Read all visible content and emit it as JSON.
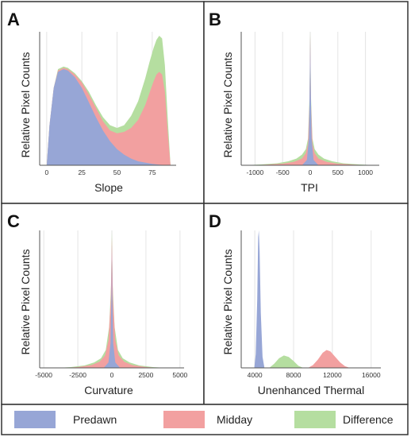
{
  "colors": {
    "predawn": "#97a6d6",
    "midday": "#f2a0a0",
    "difference": "#b5dea0",
    "border": "#333333"
  },
  "legend": {
    "items": [
      {
        "key": "predawn",
        "label": "Predawn",
        "color": "#97a6d6"
      },
      {
        "key": "midday",
        "label": "Midday",
        "color": "#f2a0a0"
      },
      {
        "key": "difference",
        "label": "Difference",
        "color": "#b5dea0"
      }
    ]
  },
  "chart_data": [
    {
      "panel": "A",
      "type": "area",
      "xlabel": "Slope",
      "ylabel": "Relative Pixel Counts",
      "xlim": [
        -5,
        92
      ],
      "ylim": [
        0,
        1
      ],
      "xticks": [
        0,
        25,
        50,
        75
      ],
      "tick_labels": [
        "0",
        "25",
        "50",
        "75"
      ],
      "series": [
        {
          "key": "difference",
          "x": [
            0,
            2,
            5,
            8,
            12,
            15,
            20,
            25,
            30,
            35,
            40,
            45,
            50,
            55,
            60,
            65,
            70,
            73,
            76,
            78,
            80,
            82,
            84,
            86,
            88
          ],
          "values": [
            0,
            0.3,
            0.58,
            0.72,
            0.74,
            0.73,
            0.69,
            0.63,
            0.55,
            0.45,
            0.36,
            0.3,
            0.28,
            0.3,
            0.37,
            0.48,
            0.65,
            0.77,
            0.88,
            0.94,
            0.97,
            0.95,
            0.75,
            0.35,
            0
          ]
        },
        {
          "key": "midday",
          "x": [
            0,
            2,
            5,
            8,
            12,
            15,
            20,
            25,
            30,
            35,
            40,
            45,
            50,
            55,
            60,
            65,
            70,
            73,
            76,
            78,
            80,
            82,
            84,
            86,
            88
          ],
          "values": [
            0,
            0.3,
            0.58,
            0.71,
            0.73,
            0.72,
            0.68,
            0.62,
            0.53,
            0.43,
            0.33,
            0.26,
            0.24,
            0.25,
            0.28,
            0.34,
            0.45,
            0.54,
            0.63,
            0.68,
            0.7,
            0.68,
            0.55,
            0.25,
            0
          ]
        },
        {
          "key": "predawn",
          "x": [
            0,
            2,
            5,
            8,
            12,
            15,
            20,
            25,
            30,
            35,
            40,
            45,
            50,
            55,
            60,
            65,
            70,
            75,
            80,
            85,
            88
          ],
          "values": [
            0,
            0.3,
            0.58,
            0.7,
            0.72,
            0.71,
            0.66,
            0.58,
            0.47,
            0.36,
            0.26,
            0.18,
            0.12,
            0.08,
            0.05,
            0.03,
            0.02,
            0.01,
            0.005,
            0.002,
            0
          ]
        }
      ]
    },
    {
      "panel": "B",
      "type": "area",
      "xlabel": "TPI",
      "ylabel": "Relative Pixel Counts",
      "xlim": [
        -1250,
        1250
      ],
      "ylim": [
        0,
        1
      ],
      "xticks": [
        -1000,
        -500,
        0,
        500,
        1000
      ],
      "tick_labels": [
        "-1000",
        "-500",
        "0",
        "500",
        "1000"
      ],
      "series": [
        {
          "key": "difference",
          "x": [
            -1200,
            -900,
            -600,
            -400,
            -250,
            -150,
            -80,
            -40,
            -15,
            0,
            15,
            40,
            80,
            150,
            250,
            400,
            600,
            900,
            1200
          ],
          "values": [
            0,
            0.006,
            0.015,
            0.03,
            0.05,
            0.08,
            0.12,
            0.2,
            0.5,
            1.0,
            0.5,
            0.2,
            0.12,
            0.08,
            0.05,
            0.03,
            0.015,
            0.006,
            0
          ]
        },
        {
          "key": "midday",
          "x": [
            -1100,
            -800,
            -500,
            -300,
            -150,
            -80,
            -40,
            -15,
            0,
            15,
            40,
            80,
            150,
            300,
            500,
            800,
            1100
          ],
          "values": [
            0,
            0.005,
            0.012,
            0.025,
            0.05,
            0.09,
            0.16,
            0.45,
            0.98,
            0.45,
            0.16,
            0.09,
            0.05,
            0.025,
            0.012,
            0.005,
            0
          ]
        },
        {
          "key": "predawn",
          "x": [
            -150,
            -60,
            -25,
            -8,
            0,
            8,
            25,
            60,
            150
          ],
          "values": [
            0,
            0.04,
            0.2,
            0.6,
            0.97,
            0.6,
            0.2,
            0.04,
            0
          ]
        }
      ]
    },
    {
      "panel": "C",
      "type": "area",
      "xlabel": "Curvature",
      "ylabel": "Relative Pixel Counts",
      "xlim": [
        -5300,
        5300
      ],
      "ylim": [
        0,
        1
      ],
      "xticks": [
        -5000,
        -2500,
        0,
        2500,
        5000
      ],
      "tick_labels": [
        "-5000",
        "-2500",
        "0",
        "2500",
        "5000"
      ],
      "series": [
        {
          "key": "difference",
          "x": [
            -4000,
            -3000,
            -2000,
            -1300,
            -800,
            -450,
            -200,
            -60,
            0,
            60,
            200,
            450,
            800,
            1300,
            2000,
            3000,
            4000
          ],
          "values": [
            0,
            0.006,
            0.018,
            0.04,
            0.07,
            0.13,
            0.3,
            0.6,
            1.0,
            0.6,
            0.3,
            0.13,
            0.07,
            0.04,
            0.018,
            0.006,
            0
          ]
        },
        {
          "key": "midday",
          "x": [
            -3600,
            -2500,
            -1500,
            -900,
            -500,
            -250,
            -80,
            0,
            80,
            250,
            500,
            900,
            1500,
            2500,
            3600
          ],
          "values": [
            0,
            0.006,
            0.02,
            0.045,
            0.09,
            0.2,
            0.5,
            0.95,
            0.5,
            0.2,
            0.09,
            0.045,
            0.02,
            0.006,
            0
          ]
        },
        {
          "key": "predawn",
          "x": [
            -600,
            -250,
            -100,
            -30,
            0,
            30,
            100,
            250,
            600
          ],
          "values": [
            0,
            0.04,
            0.18,
            0.55,
            0.9,
            0.55,
            0.18,
            0.04,
            0
          ]
        }
      ]
    },
    {
      "panel": "D",
      "type": "area",
      "xlabel": "Unenhanced Thermal",
      "ylabel": "Relative Pixel Counts",
      "xlim": [
        2600,
        17000
      ],
      "ylim": [
        0,
        1
      ],
      "xticks": [
        4000,
        8000,
        12000,
        16000
      ],
      "tick_labels": [
        "4000",
        "8000",
        "12000",
        "16000"
      ],
      "series": [
        {
          "key": "difference",
          "x": [
            5500,
            6000,
            6500,
            7000,
            7500,
            8000,
            8500,
            9000
          ],
          "values": [
            0,
            0.03,
            0.07,
            0.09,
            0.08,
            0.05,
            0.015,
            0
          ]
        },
        {
          "key": "midday",
          "x": [
            9500,
            10000,
            10500,
            11000,
            11400,
            11800,
            12300,
            12800,
            13300,
            13800
          ],
          "values": [
            0,
            0.02,
            0.06,
            0.11,
            0.13,
            0.12,
            0.08,
            0.04,
            0.012,
            0
          ]
        },
        {
          "key": "predawn",
          "x": [
            3950,
            4100,
            4250,
            4350,
            4420,
            4500,
            4620,
            4800,
            5000
          ],
          "values": [
            0,
            0.1,
            0.5,
            0.95,
            1.0,
            0.85,
            0.4,
            0.08,
            0
          ]
        }
      ]
    }
  ]
}
